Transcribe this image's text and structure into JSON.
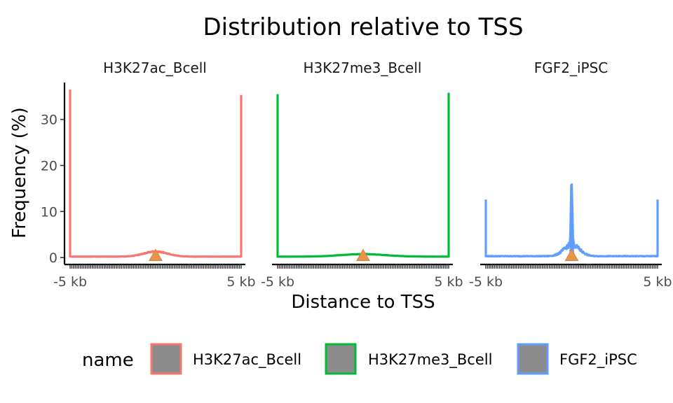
{
  "chart_data": {
    "type": "line",
    "title": "Distribution relative to TSS",
    "xlabel": "Distance to TSS",
    "ylabel": "Frequency (%)",
    "ylim": [
      -1.5,
      38
    ],
    "xlim": [
      -5000,
      5000
    ],
    "y_ticks": [
      0,
      10,
      20,
      30
    ],
    "y_tick_labels": [
      "0",
      "10",
      "20",
      "30"
    ],
    "x_tick_labels": [
      "-5 kb",
      "5 kb"
    ],
    "grid": false,
    "legend": {
      "title": "name",
      "position": "bottom",
      "entries": [
        "H3K27ac_Bcell",
        "H3K27me3_Bcell",
        "FGF2_iPSC"
      ]
    },
    "marker": {
      "shape": "triangle",
      "color": "#E8954B",
      "x": 0,
      "y": 0.4
    },
    "panels": [
      {
        "name": "H3K27ac_Bcell",
        "color": "#F8766D",
        "edge_left": 36.5,
        "edge_right": 35.3,
        "baseline": 0.2,
        "peak": 1.1,
        "peak_width": 700,
        "spike": 0,
        "noise": 0.15
      },
      {
        "name": "H3K27me3_Bcell",
        "color": "#00BA38",
        "edge_left": 35.5,
        "edge_right": 35.8,
        "baseline": 0.2,
        "peak": 0.55,
        "peak_width": 1300,
        "spike": 0,
        "noise": 0.08
      },
      {
        "name": "FGF2_iPSC",
        "color": "#619CFF",
        "edge_left": 12.6,
        "edge_right": 12.6,
        "baseline": 0.3,
        "peak": 2.5,
        "peak_width": 450,
        "spike": 16.2,
        "noise": 0.4
      }
    ]
  }
}
